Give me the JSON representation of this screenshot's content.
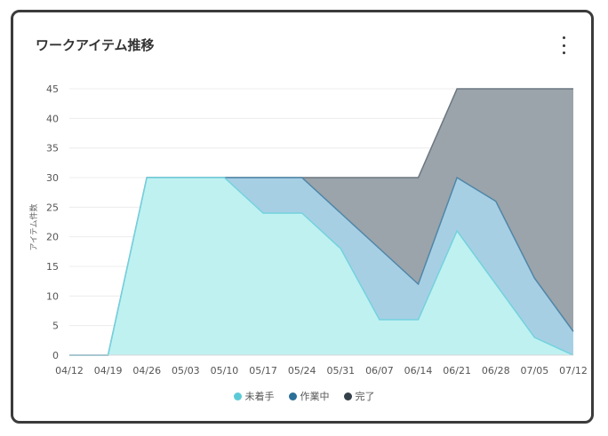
{
  "title": "ワークアイテム推移",
  "menu_icon": "more-vertical-icon",
  "chart_data": {
    "type": "area",
    "stacked": false,
    "xlabel": "",
    "ylabel": "アイテム件数",
    "ylim": [
      0,
      45
    ],
    "yticks": [
      0,
      5,
      10,
      15,
      20,
      25,
      30,
      35,
      40,
      45
    ],
    "grid": true,
    "legend": "bottom",
    "x": [
      "04/12",
      "04/19",
      "04/26",
      "05/03",
      "05/10",
      "05/17",
      "05/24",
      "05/31",
      "06/07",
      "06/14",
      "06/21",
      "06/28",
      "07/05",
      "07/12"
    ],
    "series": [
      {
        "name": "完了",
        "color": "#9ba4aa",
        "stroke": "#6b7780",
        "values": [
          0,
          0,
          30,
          30,
          30,
          30,
          30,
          30,
          30,
          30,
          45,
          45,
          45,
          45
        ]
      },
      {
        "name": "作業中",
        "color": "#a7cfe4",
        "stroke": "#4f86a8",
        "values": [
          0,
          0,
          30,
          30,
          30,
          30,
          30,
          24,
          18,
          12,
          30,
          26,
          13,
          4
        ]
      },
      {
        "name": "未着手",
        "color": "#bff1f1",
        "stroke": "#74d2de",
        "values": [
          0,
          0,
          30,
          30,
          30,
          24,
          24,
          18,
          6,
          6,
          21,
          12,
          3,
          0
        ]
      }
    ]
  },
  "legend": [
    {
      "label": "未着手",
      "color": "#5ccad6"
    },
    {
      "label": "作業中",
      "color": "#2c6f99"
    },
    {
      "label": "完了",
      "color": "#34404a"
    }
  ]
}
